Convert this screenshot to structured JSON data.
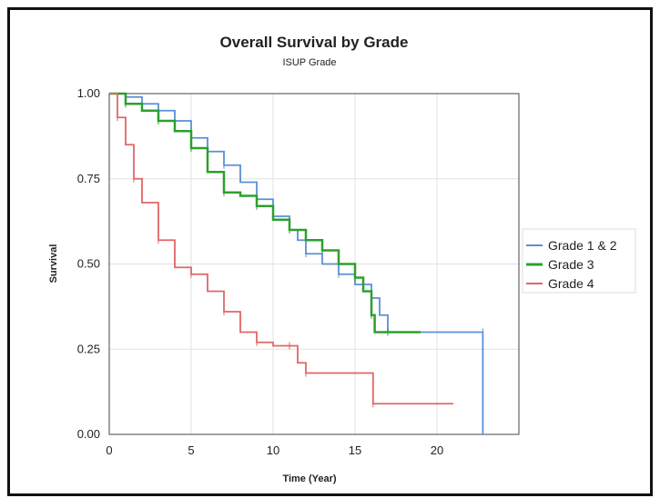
{
  "chart_data": {
    "type": "line",
    "title": "Overall Survival by Grade",
    "subtitle": "ISUP Grade",
    "xlabel": "Time (Year)",
    "ylabel": "Survival",
    "xlim": [
      0,
      25
    ],
    "ylim": [
      0,
      1
    ],
    "x_ticks": [
      0,
      5,
      10,
      15,
      20
    ],
    "y_ticks": [
      "0.00",
      "0.25",
      "0.50",
      "0.75",
      "1.00"
    ],
    "grid": true,
    "legend_position": "right",
    "series": [
      {
        "name": "Grade 1 & 2",
        "color": "#5b8fd6",
        "points": [
          [
            0,
            1.0
          ],
          [
            1,
            0.99
          ],
          [
            2,
            0.97
          ],
          [
            3,
            0.95
          ],
          [
            4,
            0.92
          ],
          [
            5,
            0.87
          ],
          [
            6,
            0.83
          ],
          [
            7,
            0.79
          ],
          [
            8,
            0.74
          ],
          [
            9,
            0.69
          ],
          [
            10,
            0.64
          ],
          [
            11,
            0.6
          ],
          [
            11.5,
            0.57
          ],
          [
            12,
            0.53
          ],
          [
            13,
            0.5
          ],
          [
            14,
            0.47
          ],
          [
            15,
            0.44
          ],
          [
            16,
            0.4
          ],
          [
            16.5,
            0.35
          ],
          [
            17,
            0.3
          ],
          [
            20,
            0.3
          ],
          [
            22.8,
            0.3
          ],
          [
            22.8,
            0.0
          ]
        ]
      },
      {
        "name": "Grade 3",
        "color": "#2ca02c",
        "points": [
          [
            0,
            1.0
          ],
          [
            1,
            0.97
          ],
          [
            2,
            0.95
          ],
          [
            3,
            0.92
          ],
          [
            4,
            0.89
          ],
          [
            5,
            0.84
          ],
          [
            6,
            0.77
          ],
          [
            7,
            0.71
          ],
          [
            8,
            0.7
          ],
          [
            9,
            0.67
          ],
          [
            10,
            0.63
          ],
          [
            11,
            0.6
          ],
          [
            12,
            0.57
          ],
          [
            13,
            0.54
          ],
          [
            14,
            0.5
          ],
          [
            15,
            0.46
          ],
          [
            15.5,
            0.42
          ],
          [
            16,
            0.35
          ],
          [
            16.2,
            0.3
          ],
          [
            17,
            0.3
          ],
          [
            19,
            0.3
          ]
        ]
      },
      {
        "name": "Grade 4",
        "color": "#e06666",
        "points": [
          [
            0,
            1.0
          ],
          [
            0.5,
            0.93
          ],
          [
            1,
            0.85
          ],
          [
            1.5,
            0.75
          ],
          [
            2,
            0.68
          ],
          [
            3,
            0.57
          ],
          [
            4,
            0.49
          ],
          [
            5,
            0.47
          ],
          [
            6,
            0.42
          ],
          [
            7,
            0.36
          ],
          [
            8,
            0.3
          ],
          [
            9,
            0.27
          ],
          [
            10,
            0.26
          ],
          [
            11,
            0.26
          ],
          [
            11.5,
            0.21
          ],
          [
            12,
            0.18
          ],
          [
            16.1,
            0.18
          ],
          [
            16.1,
            0.09
          ],
          [
            21,
            0.09
          ]
        ]
      }
    ]
  }
}
